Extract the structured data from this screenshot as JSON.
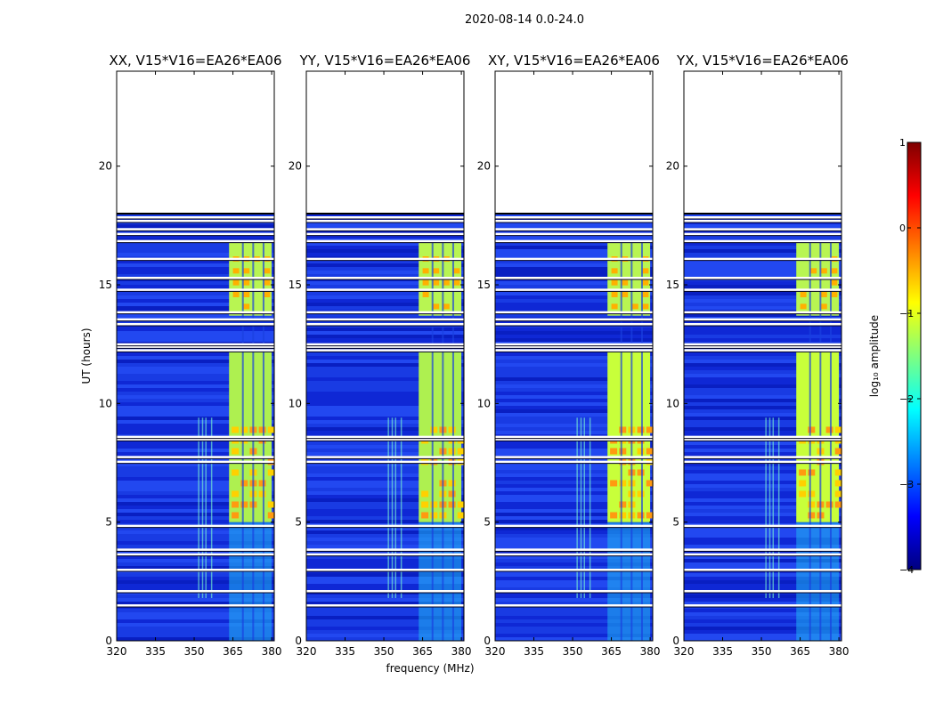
{
  "suptitle": "2020-08-14 0.0-24.0",
  "xlabel": "frequency (MHz)",
  "ylabel": "UT (hours)",
  "colorbar": {
    "label": "log₁₀ amplitude",
    "ticks": [
      "1",
      "0",
      "−1",
      "−2",
      "−3",
      "−4"
    ],
    "range": [
      -4,
      1
    ],
    "colors": [
      "#00007f",
      "#0000ff",
      "#007fff",
      "#00ffff",
      "#7fff7f",
      "#ffff00",
      "#ff7f00",
      "#ff0000",
      "#7f0000"
    ]
  },
  "chart_data": {
    "type": "heatmap",
    "x_range_mhz": [
      320,
      381
    ],
    "y_range_hours": [
      0,
      24
    ],
    "xticks": [
      "320",
      "335",
      "350",
      "365",
      "380"
    ],
    "yticks": [
      "0",
      "5",
      "10",
      "15",
      "20"
    ],
    "panels": [
      {
        "title": "XX, V15*V16=EA26*EA06"
      },
      {
        "title": "YY, V15*V16=EA26*EA06"
      },
      {
        "title": "XY, V15*V16=EA26*EA06"
      },
      {
        "title": "YX, V15*V16=EA26*EA06"
      }
    ],
    "data_end_hours": 18.0,
    "flagged_hours": [
      1.5,
      2.1,
      3.0,
      3.65,
      3.85,
      4.85,
      7.55,
      7.75,
      8.5,
      8.6,
      12.25,
      12.4,
      12.5,
      13.35,
      13.55,
      13.85,
      14.8,
      15.3,
      16.1,
      16.85,
      17.15,
      17.35,
      17.7,
      17.85
    ]
  }
}
